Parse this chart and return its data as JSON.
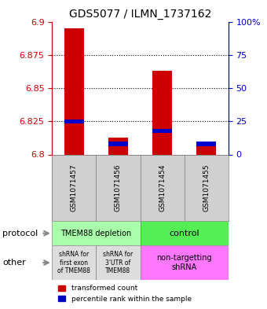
{
  "title": "GDS5077 / ILMN_1737162",
  "samples": [
    "GSM1071457",
    "GSM1071456",
    "GSM1071454",
    "GSM1071455"
  ],
  "red_values": [
    6.895,
    6.813,
    6.863,
    6.81
  ],
  "blue_values": [
    6.825,
    6.808,
    6.818,
    6.808
  ],
  "ymin": 6.8,
  "ymax": 6.9,
  "yticks": [
    6.8,
    6.825,
    6.85,
    6.875,
    6.9
  ],
  "ytick_labels": [
    "6.8",
    "6.825",
    "6.85",
    "6.875",
    "6.9"
  ],
  "right_yticks": [
    0,
    25,
    50,
    75,
    100
  ],
  "right_ytick_labels": [
    "0",
    "25",
    "50",
    "75",
    "100%"
  ],
  "bar_width": 0.45,
  "red_color": "#cc0000",
  "blue_color": "#0000cc",
  "protocol_text": [
    "TMEM88 depletion",
    "control"
  ],
  "protocol_bg": [
    "#aaffaa",
    "#55ee55"
  ],
  "other_text": [
    "shRNA for\nfirst exon\nof TMEM88",
    "shRNA for\n3'UTR of\nTMEM88",
    "non-targetting\nshRNA"
  ],
  "other_bg": [
    "#dddddd",
    "#dddddd",
    "#ff77ff"
  ]
}
